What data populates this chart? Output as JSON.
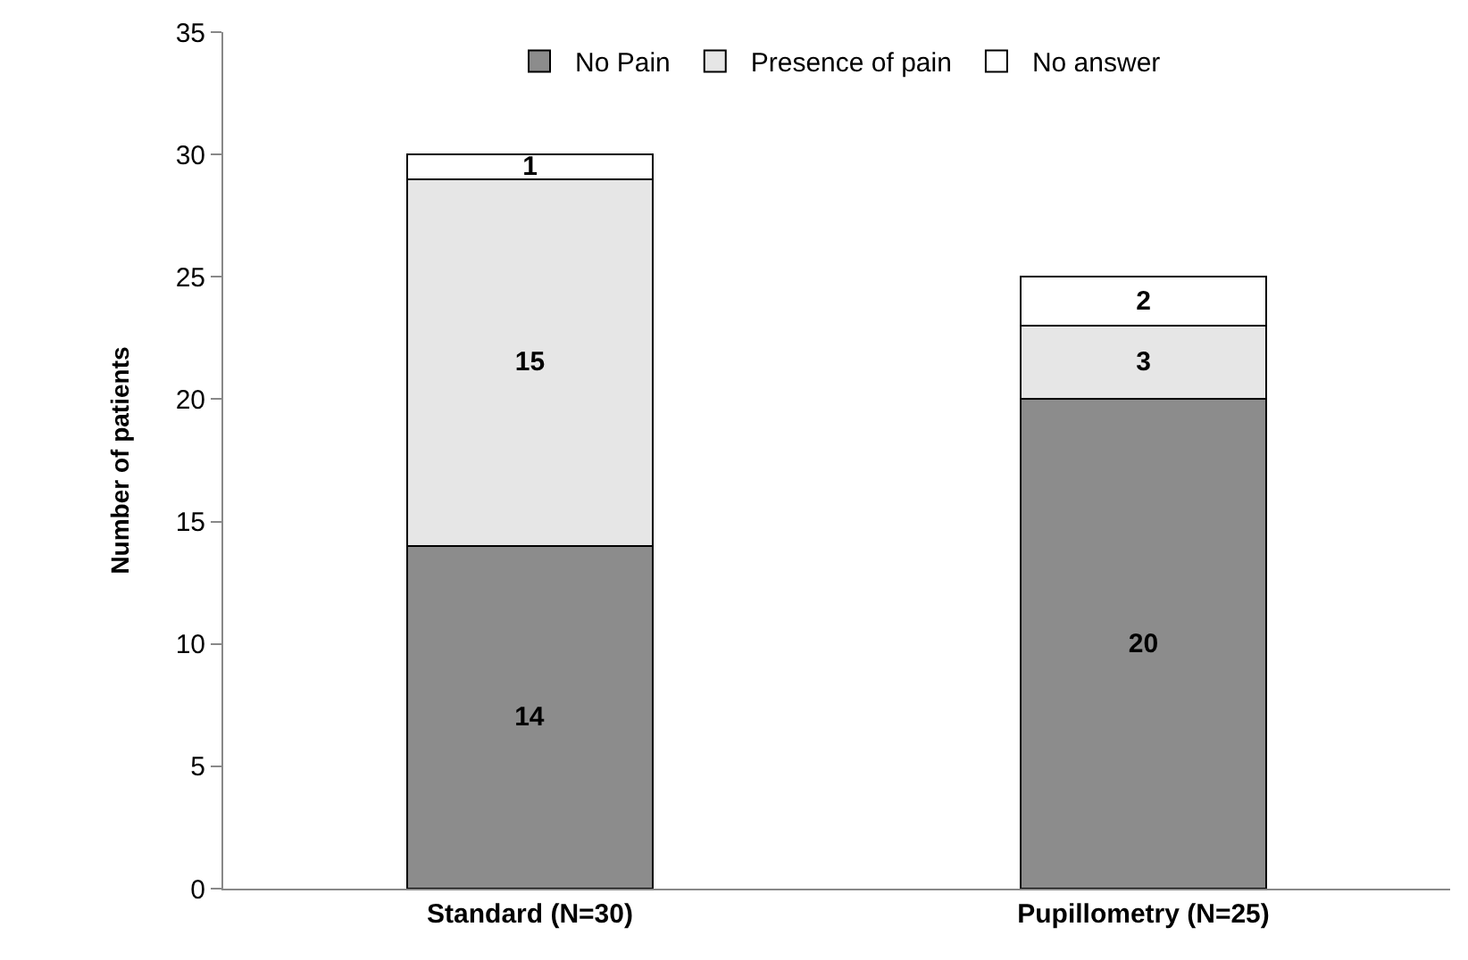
{
  "chart_data": {
    "type": "bar",
    "stacked": true,
    "ylabel": "Number of patients",
    "categories": [
      "Standard (N=30)",
      "Pupillometry (N=25)"
    ],
    "series": [
      {
        "name": "No Pain",
        "color": "#8c8c8c",
        "values": [
          14,
          20
        ]
      },
      {
        "name": "Presence of pain",
        "color": "#e6e6e6",
        "values": [
          15,
          3
        ]
      },
      {
        "name": "No answer",
        "color": "#ffffff",
        "values": [
          1,
          2
        ]
      }
    ],
    "ylim": [
      0,
      35
    ],
    "yticks": [
      0,
      5,
      10,
      15,
      20,
      25,
      30,
      35
    ],
    "grid": false,
    "legend": "top",
    "data_labels": true
  }
}
